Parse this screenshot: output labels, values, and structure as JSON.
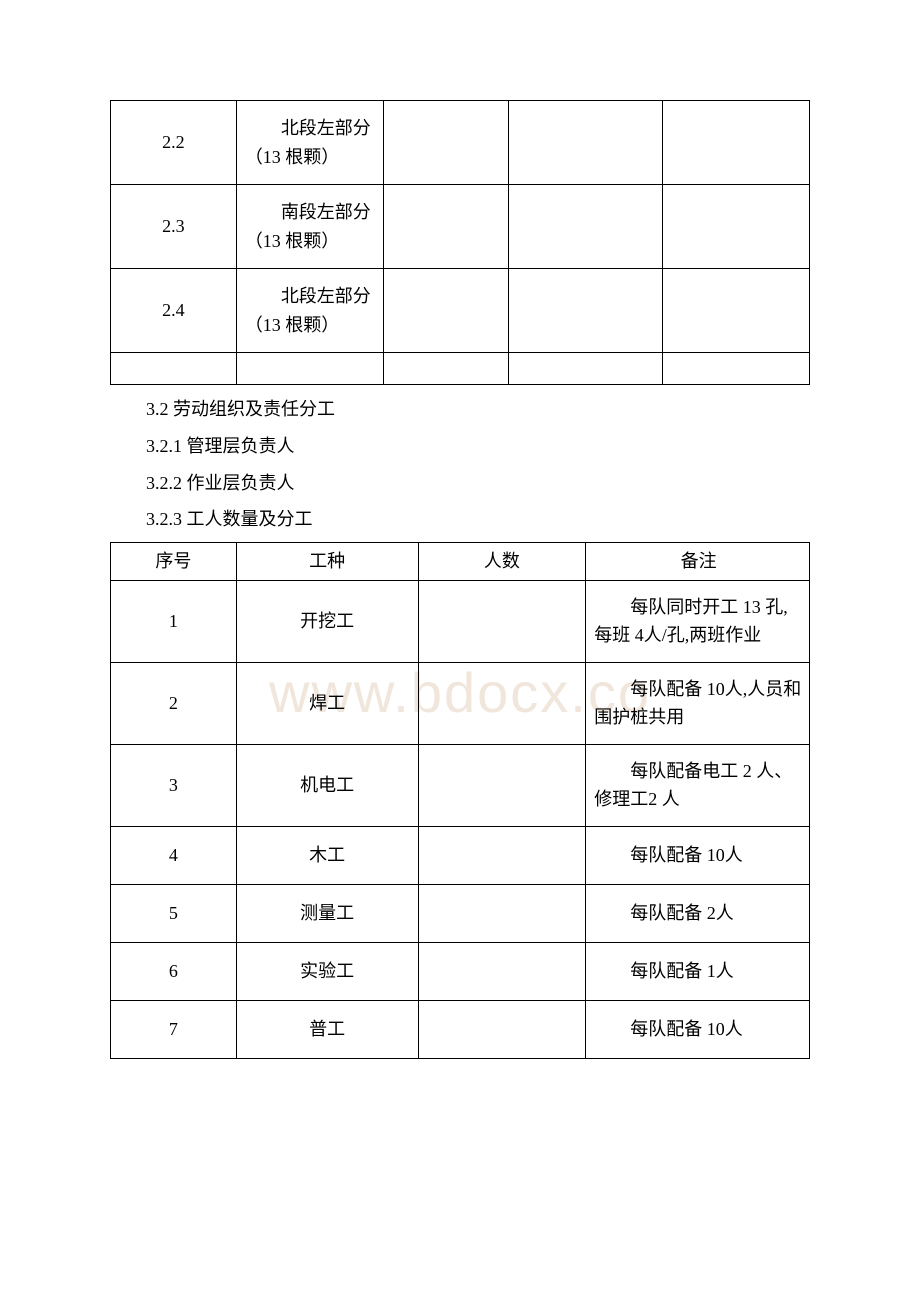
{
  "watermark": "www.bdocx.co",
  "table1": {
    "rows": [
      {
        "col1": "2.2",
        "col2": "北段左部分（13 根颗）",
        "col3": "",
        "col4": "",
        "col5": ""
      },
      {
        "col1": "2.3",
        "col2": "南段左部分（13 根颗）",
        "col3": "",
        "col4": "",
        "col5": ""
      },
      {
        "col1": "2.4",
        "col2": "北段左部分（13 根颗）",
        "col3": "",
        "col4": "",
        "col5": ""
      },
      {
        "col1": "",
        "col2": "",
        "col3": "",
        "col4": "",
        "col5": ""
      }
    ]
  },
  "sections": {
    "s1": "3.2 劳动组织及责任分工",
    "s2": "3.2.1 管理层负责人",
    "s3": "3.2.2 作业层负责人",
    "s4": "3.2.3 工人数量及分工"
  },
  "table2": {
    "header": {
      "col_a": "序号",
      "col_b": "工种",
      "col_c": "人数",
      "col_d": "备注"
    },
    "rows": [
      {
        "col_a": "1",
        "col_b": "开挖工",
        "col_c": "",
        "col_d": "每队同时开工 13 孔,每班 4人/孔,两班作业",
        "height": "row-h3"
      },
      {
        "col_a": "2",
        "col_b": "焊工",
        "col_c": "",
        "col_d": "每队配备 10人,人员和围护桩共用",
        "height": "row-h3"
      },
      {
        "col_a": "3",
        "col_b": "机电工",
        "col_c": "",
        "col_d": "每队配备电工 2 人、修理工2 人",
        "height": "row-h3"
      },
      {
        "col_a": "4",
        "col_b": "木工",
        "col_c": "",
        "col_d": "每队配备 10人",
        "height": "row-h2"
      },
      {
        "col_a": "5",
        "col_b": "测量工",
        "col_c": "",
        "col_d": "每队配备 2人",
        "height": "row-h2"
      },
      {
        "col_a": "6",
        "col_b": "实验工",
        "col_c": "",
        "col_d": "每队配备 1人",
        "height": "row-h2"
      },
      {
        "col_a": "7",
        "col_b": "普工",
        "col_c": "",
        "col_d": "每队配备 10人",
        "height": "row-h2"
      }
    ]
  }
}
